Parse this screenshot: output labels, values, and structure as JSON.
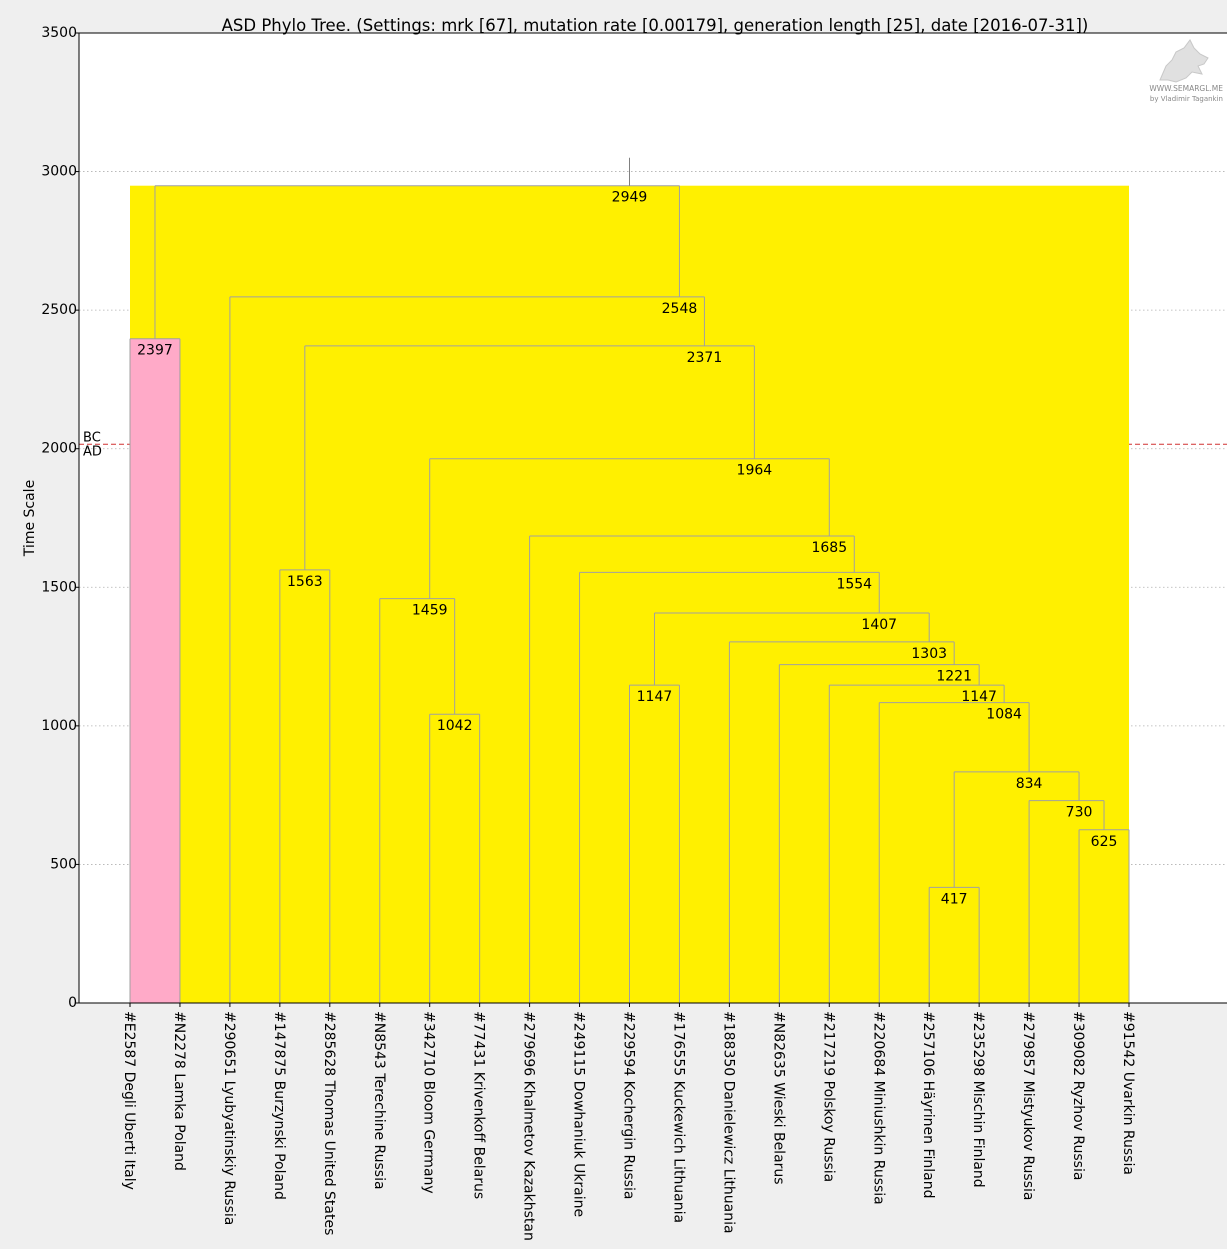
{
  "chart_data": {
    "type": "dendrogram",
    "title": "ASD Phylo Tree. (Settings: mrk [67], mutation rate [0.00179], generation length [25], date [2016-07-31])",
    "ylabel": "Time Scale",
    "ylim": [
      0,
      3500
    ],
    "yticks": [
      0,
      500,
      1000,
      1500,
      2000,
      2500,
      3000,
      3500
    ],
    "era_line": {
      "value": 2016,
      "above": "BC",
      "below": "AD"
    },
    "root_stem_top": 3050,
    "grid": true,
    "leaves": [
      "#E2587 Degli Uberti Italy",
      "#N2278 Lamka Poland",
      "#290651 Lyubyatinskiy Russia",
      "#147875 Burzynski Poland",
      "#285628 Thomas United States",
      "#N8543 Terechine Russia",
      "#342710 Bloom Germany",
      "#77431 Krivenkoff Belarus",
      "#279696 Khalmetov Kazakhstan",
      "#249115 Dowhaniuk Ukraine",
      "#229594 Kochergin Russia",
      "#176555 Kuckewich Lithuania",
      "#188350 Danielewicz Lithuania",
      "#N82635 Wieski Belarus",
      "#217219 Polskoy Russia",
      "#220684 Miniushkin Russia",
      "#257106 Häyrinen Finland",
      "#235298 Mischin Finland",
      "#279857 Mistyukov Russia",
      "#309082 Ryzhov Russia",
      "#91542 Uvarkin Russia"
    ],
    "nodes": [
      {
        "id": "n2397",
        "value": 2397,
        "left": 0,
        "right": 1,
        "fill": "#ffaac8"
      },
      {
        "id": "n1563",
        "value": 1563,
        "left": 3,
        "right": 4,
        "fill": "#fff000"
      },
      {
        "id": "n1042",
        "value": 1042,
        "left": 6,
        "right": 7,
        "fill": "#fff000"
      },
      {
        "id": "n1459",
        "value": 1459,
        "left": 5,
        "right": "n1042",
        "fill": "#fff000"
      },
      {
        "id": "n1147a",
        "value": 1147,
        "left": 10,
        "right": 11,
        "fill": "#fff000"
      },
      {
        "id": "n417",
        "value": 417,
        "left": 16,
        "right": 17,
        "fill": "#fff000"
      },
      {
        "id": "n625",
        "value": 625,
        "left": 19,
        "right": 20,
        "fill": "#fff000"
      },
      {
        "id": "n730",
        "value": 730,
        "left": 18,
        "right": "n625",
        "fill": "#fff000"
      },
      {
        "id": "n834",
        "value": 834,
        "left": "n417",
        "right": "n730",
        "fill": "#fff000"
      },
      {
        "id": "n1084",
        "value": 1084,
        "left": 15,
        "right": "n834",
        "fill": "#fff000"
      },
      {
        "id": "n1147b",
        "value": 1147,
        "left": 14,
        "right": "n1084",
        "fill": "#fff000"
      },
      {
        "id": "n1221",
        "value": 1221,
        "left": 13,
        "right": "n1147b",
        "fill": "#fff000"
      },
      {
        "id": "n1303",
        "value": 1303,
        "left": 12,
        "right": "n1221",
        "fill": "#fff000"
      },
      {
        "id": "n1407",
        "value": 1407,
        "left": "n1147a",
        "right": "n1303",
        "fill": "#fff000"
      },
      {
        "id": "n1554",
        "value": 1554,
        "left": 9,
        "right": "n1407",
        "fill": "#fff000"
      },
      {
        "id": "n1685",
        "value": 1685,
        "left": 8,
        "right": "n1554",
        "fill": "#fff000"
      },
      {
        "id": "n1964",
        "value": 1964,
        "left": "n1459",
        "right": "n1685",
        "fill": "#fff000"
      },
      {
        "id": "n2371",
        "value": 2371,
        "left": "n1563",
        "right": "n1964",
        "fill": "#fff000"
      },
      {
        "id": "n2548",
        "value": 2548,
        "left": 2,
        "right": "n2371",
        "fill": "#fff000"
      },
      {
        "id": "n2949",
        "value": 2949,
        "left": "n2397",
        "right": "n2548",
        "fill": "#fff000"
      }
    ]
  },
  "watermark": {
    "line1": "WWW.SEMARGL.ME",
    "line2": "by Vladimir Tagankin"
  },
  "colors": {
    "plot_background": "#ffffff",
    "page_background": "#efefef",
    "grid": "#b0b0b0",
    "era_line": "#d03030",
    "branch": "#a0a0a0"
  }
}
